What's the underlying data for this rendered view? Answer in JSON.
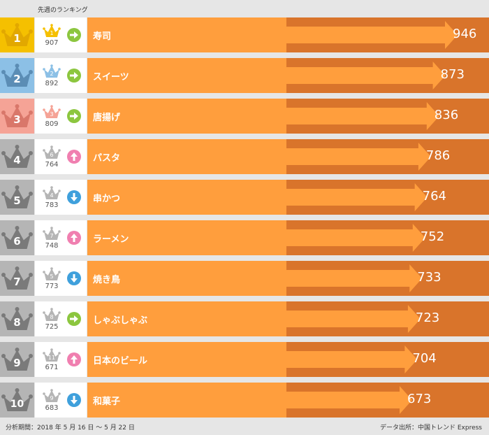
{
  "header": {
    "prev_week_label": "先週のランキング"
  },
  "footer": {
    "period": "分析期間：2018 年 5 月 16 日 ～ 5 月 22 日",
    "source": "データ出所：中国トレンド Express"
  },
  "colors": {
    "gold": "#f5c000",
    "blue": "#8cc0e6",
    "salmon": "#f5a396",
    "gray": "#b5b5b5",
    "bar_light": "#ff9e3d",
    "bar_dark": "#d9742b",
    "trend_same": "#8cc63f",
    "trend_up": "#f07fb0",
    "trend_down": "#3fa0dc"
  },
  "chart_data": {
    "type": "bar",
    "orientation": "horizontal",
    "categories": [
      "寿司",
      "スイーツ",
      "唐揚げ",
      "パスタ",
      "串かつ",
      "ラーメン",
      "焼き鳥",
      "しゃぶしゃぶ",
      "日本のビール",
      "和菓子"
    ],
    "values": [
      946,
      873,
      836,
      786,
      764,
      752,
      733,
      723,
      704,
      673
    ],
    "ranks": [
      "1",
      "2",
      "3",
      "4",
      "5",
      "6",
      "7",
      "8",
      "9",
      "10"
    ],
    "prev_ranks": [
      "1",
      "2",
      "3",
      "6",
      "4",
      "7",
      "5",
      "8",
      "11",
      "9"
    ],
    "prev_scores": [
      "907",
      "892",
      "809",
      "764",
      "783",
      "748",
      "773",
      "725",
      "671",
      "683"
    ],
    "trend_icons": [
      "arrow-right-icon",
      "arrow-right-icon",
      "arrow-right-icon",
      "arrow-up-icon",
      "arrow-down-icon",
      "arrow-up-icon",
      "arrow-down-icon",
      "arrow-right-icon",
      "arrow-up-icon",
      "arrow-down-icon"
    ]
  }
}
